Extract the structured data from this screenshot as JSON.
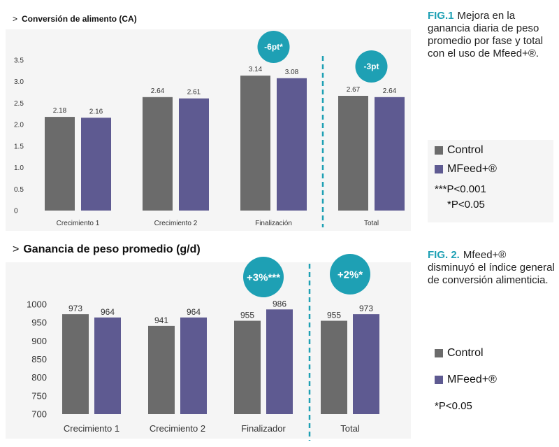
{
  "colors": {
    "control": "#6b6b6b",
    "mfeed": "#5e5a91",
    "accent": "#1ea0b4",
    "panel": "#f5f5f5",
    "grid": "#d6d6d6"
  },
  "fig1": {
    "label": "FIG.1",
    "text": "Mejora en la ganancia diaria de peso promedio por fase y total con el uso de Mfeed+®."
  },
  "fig2": {
    "label": "FIG. 2.",
    "text": "Mfeed+® disminuyó el índice general de conversión alimenticia."
  },
  "legend1": {
    "control": "Control",
    "mfeed": "MFeed+®",
    "note1": "***P<0.001",
    "note2": "*P<0.05"
  },
  "legend2": {
    "control": "Control",
    "mfeed": "MFeed+®",
    "note": "*P<0.05"
  },
  "chart_data": [
    {
      "type": "bar",
      "title": "Conversión de alimento (CA)",
      "title_prefix": ">",
      "categories": [
        "Crecimiento 1",
        "Crecimiento 2",
        "Finalización",
        "Total"
      ],
      "series": [
        {
          "name": "Control",
          "values": [
            2.18,
            2.64,
            3.14,
            2.67
          ]
        },
        {
          "name": "MFeed+®",
          "values": [
            2.16,
            2.61,
            3.08,
            2.64
          ]
        }
      ],
      "value_labels": [
        [
          "2.18",
          "2.64",
          "3.14",
          "2.67"
        ],
        [
          "2.16",
          "2.61",
          "3.08",
          "2.64"
        ]
      ],
      "ylim": [
        0,
        3.5
      ],
      "yticks": [
        "0",
        "0.5",
        "1.0",
        "1.5",
        "2.0",
        "2.5",
        "3.0",
        "3.5"
      ],
      "ytick_values": [
        0,
        0.5,
        1.0,
        1.5,
        2.0,
        2.5,
        3.0,
        3.5
      ],
      "grid": false,
      "annotations": [
        {
          "text": "-6pt*",
          "category": "Finalización"
        },
        {
          "text": "-3pt",
          "category": "Total"
        }
      ],
      "divider_before": "Total"
    },
    {
      "type": "bar",
      "title": "Ganancia de peso promedio (g/d)",
      "title_prefix": ">",
      "categories": [
        "Crecimiento 1",
        "Crecimiento 2",
        "Finalizador",
        "Total"
      ],
      "series": [
        {
          "name": "Control",
          "values": [
            973,
            941,
            955,
            955
          ]
        },
        {
          "name": "MFeed+®",
          "values": [
            964,
            964,
            986,
            973
          ]
        }
      ],
      "value_labels": [
        [
          "973",
          "941",
          "955",
          "955"
        ],
        [
          "964",
          "964",
          "986",
          "973"
        ]
      ],
      "ylim": [
        700,
        1000
      ],
      "yticks": [
        "700",
        "750",
        "800",
        "850",
        "900",
        "950",
        "1000"
      ],
      "ytick_values": [
        700,
        750,
        800,
        850,
        900,
        950,
        1000
      ],
      "grid": false,
      "annotations": [
        {
          "text": "+3%***",
          "category": "Finalizador"
        },
        {
          "text": "+2%*",
          "category": "Total"
        }
      ],
      "divider_before": "Total"
    }
  ]
}
